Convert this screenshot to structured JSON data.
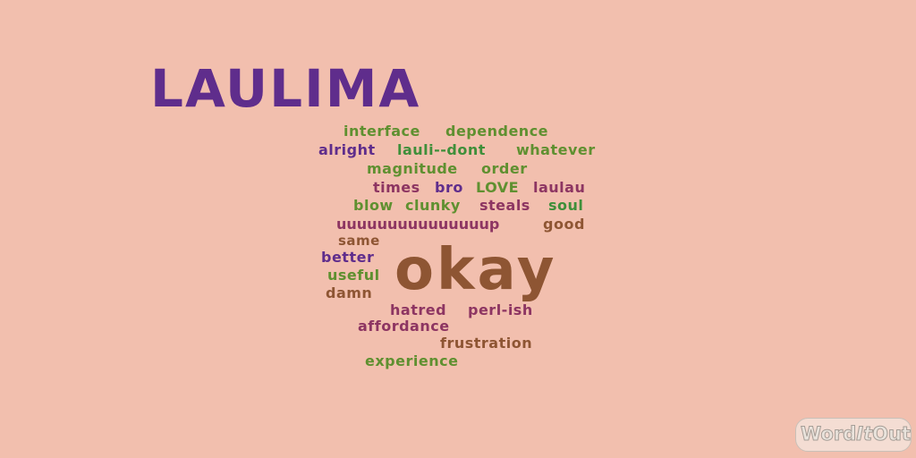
{
  "words": [
    {
      "text": "LAULIMA",
      "color": "#5f2d8c"
    },
    {
      "text": "interface",
      "color": "#5f9030"
    },
    {
      "text": "dependence",
      "color": "#5f9030"
    },
    {
      "text": "alright",
      "color": "#5f2d8c"
    },
    {
      "text": "lauli--dont",
      "color": "#3f8f3a"
    },
    {
      "text": "whatever",
      "color": "#5f9030"
    },
    {
      "text": "magnitude",
      "color": "#5f9030"
    },
    {
      "text": "order",
      "color": "#5f9030"
    },
    {
      "text": "times",
      "color": "#8d3562"
    },
    {
      "text": "bro",
      "color": "#5f2d8c"
    },
    {
      "text": "LOVE",
      "color": "#5f9030"
    },
    {
      "text": "laulau",
      "color": "#8d3562"
    },
    {
      "text": "blow",
      "color": "#5f9030"
    },
    {
      "text": "clunky",
      "color": "#5f9030"
    },
    {
      "text": "steals",
      "color": "#8d3562"
    },
    {
      "text": "soul",
      "color": "#3f8f3a"
    },
    {
      "text": "uuuuuuuuuuuuuuup",
      "color": "#8d3562"
    },
    {
      "text": "good",
      "color": "#8e5533"
    },
    {
      "text": "same",
      "color": "#8e5533"
    },
    {
      "text": "better",
      "color": "#5f2d8c"
    },
    {
      "text": "useful",
      "color": "#5f9030"
    },
    {
      "text": "damn",
      "color": "#8e5533"
    },
    {
      "text": "okay",
      "color": "#8e5533"
    },
    {
      "text": "hatred",
      "color": "#8d3562"
    },
    {
      "text": "perl-ish",
      "color": "#8d3562"
    },
    {
      "text": "affordance",
      "color": "#8d3562"
    },
    {
      "text": "frustration",
      "color": "#8e5533"
    },
    {
      "text": "experience",
      "color": "#5f9030"
    }
  ],
  "watermark": {
    "part1": "Word",
    "part2": "It",
    "part3": "Out"
  }
}
